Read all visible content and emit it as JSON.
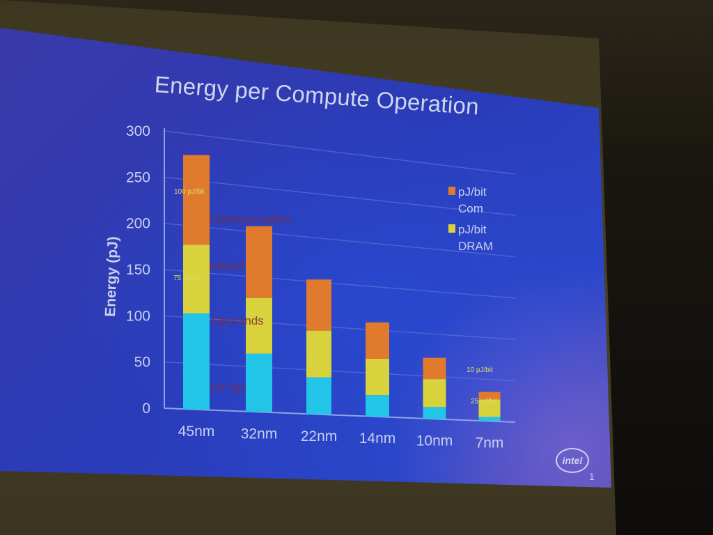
{
  "chart_data": {
    "type": "bar",
    "stacked": true,
    "title": "Energy per Compute Operation",
    "ylabel": "Energy (pJ)",
    "xlabel": "",
    "ylim": [
      0,
      300
    ],
    "yticks": [
      0,
      50,
      100,
      150,
      200,
      250,
      300
    ],
    "categories": [
      "45nm",
      "32nm",
      "22nm",
      "14nm",
      "10nm",
      "7nm"
    ],
    "series": [
      {
        "label": "FP Op",
        "color": "#22c4e8",
        "values": [
          105,
          65,
          42,
          25,
          14,
          5
        ]
      },
      {
        "label": "Operands",
        "color": "#d8d23c",
        "values": [
          75,
          62,
          53,
          42,
          33,
          21
        ]
      },
      {
        "label": "DRAM",
        "color": "#e07a2c",
        "values": [
          98,
          80,
          58,
          42,
          25,
          9
        ]
      }
    ],
    "grid": true,
    "legend_position": "top-right",
    "legend": [
      {
        "label": "pJ/bit Com",
        "lines": [
          "pJ/bit",
          "Com"
        ],
        "color": "#e07a2c"
      },
      {
        "label": "pJ/bit DRAM",
        "lines": [
          "pJ/bit",
          "DRAM"
        ],
        "color": "#d8d23c"
      }
    ],
    "annotations": {
      "inside_45nm": [
        "Communication",
        "DRAM",
        "Operands",
        "FP Op"
      ],
      "small": [
        "100 pJ/bit",
        "75 pJ/bit",
        "10 pJ/bit",
        "25 pJ/bit"
      ]
    }
  },
  "slide": {
    "page_number": "1",
    "logo_text": "intel"
  }
}
